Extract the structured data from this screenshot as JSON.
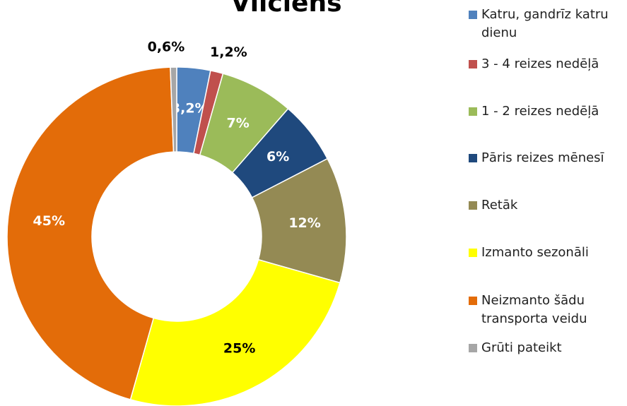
{
  "chart_data": {
    "type": "donut",
    "title": "Vilciens",
    "categories": [
      "Katru, gandrīz katru dienu",
      "3 - 4 reizes nedēļā",
      "1 - 2 reizes nedēļā",
      "Pāris reizes mēnesī",
      "Retāk",
      "Izmanto sezonāli",
      "Neizmanto šādu transporta veidu",
      "Grūti pateikt"
    ],
    "values": [
      3.2,
      1.2,
      7,
      6,
      12,
      25,
      45,
      0.6
    ],
    "value_labels": [
      "3,2%",
      "1,2%",
      "7%",
      "6%",
      "12%",
      "25%",
      "45%",
      "0,6%"
    ],
    "colors": [
      "#4f81bd",
      "#c0504d",
      "#9bbb59",
      "#1f497d",
      "#948a54",
      "#ffff00",
      "#e36c09",
      "#a6a6a6"
    ],
    "legend": "right"
  }
}
